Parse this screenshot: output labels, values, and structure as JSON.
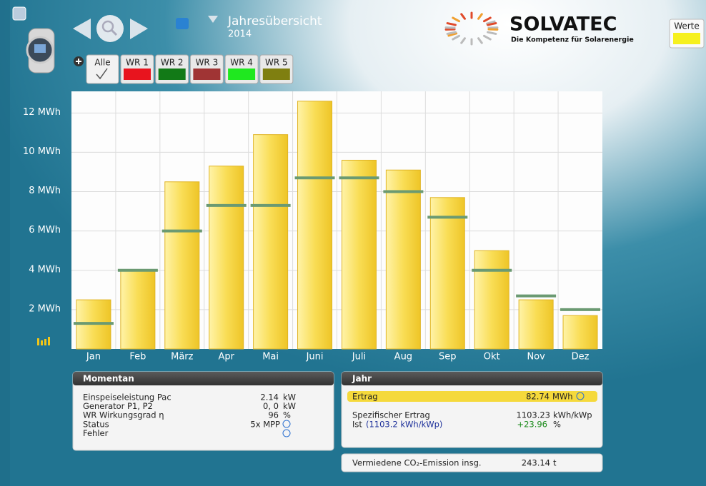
{
  "header": {
    "title": "Jahresübersicht",
    "year": "2014",
    "brand": "SOLVATEC",
    "slogan": "Die Kompetenz für Solarenergie",
    "values_button": "Werte"
  },
  "tabs": [
    {
      "label": "Alle"
    },
    {
      "label": "WR 1",
      "color": "#e8141e"
    },
    {
      "label": "WR 2",
      "color": "#127a17"
    },
    {
      "label": "WR 3",
      "color": "#a03434"
    },
    {
      "label": "WR 4",
      "color": "#1fe81f"
    },
    {
      "label": "WR 5",
      "color": "#7f7f10"
    }
  ],
  "chart_data": {
    "type": "bar",
    "categories": [
      "Jan",
      "Feb",
      "März",
      "Apr",
      "Mai",
      "Juni",
      "Juli",
      "Aug",
      "Sep",
      "Okt",
      "Nov",
      "Dez"
    ],
    "series": [
      {
        "color": "#f6d84c",
        "values": [
          2.5,
          4.0,
          8.5,
          9.3,
          10.9,
          12.6,
          9.6,
          9.1,
          7.7,
          5.0,
          2.5,
          1.7
        ]
      },
      {
        "color": "#6b9a72",
        "values": [
          1.3,
          4.0,
          6.0,
          7.3,
          7.3,
          8.7,
          8.7,
          8.0,
          6.7,
          4.0,
          2.7,
          2.0
        ]
      }
    ],
    "ylim": [
      0,
      13.1
    ],
    "yticks": [
      {
        "value": 2,
        "label": "2 MWh"
      },
      {
        "value": 4,
        "label": "4 MWh"
      },
      {
        "value": 6,
        "label": "6 MWh"
      },
      {
        "value": 8,
        "label": "8 MWh"
      },
      {
        "value": 10,
        "label": "10 MWh"
      },
      {
        "value": 12,
        "label": "12 MWh"
      }
    ],
    "grid": true
  },
  "momentan": {
    "title": "Momentan",
    "rows": [
      {
        "label": "Einspeiseleistung Pac",
        "value": "2.14",
        "unit": "kW"
      },
      {
        "label": "Generator P1, P2",
        "value": "0, 0",
        "unit": "kW"
      },
      {
        "label": "WR Wirkungsgrad η",
        "value": "96",
        "unit": "%"
      },
      {
        "label": "Status",
        "value": "5x MPP"
      },
      {
        "label": "Fehler"
      }
    ]
  },
  "jahr": {
    "title": "Jahr",
    "ertrag": {
      "label": "Ertrag",
      "value": "82.74",
      "unit": "MWh"
    },
    "specific": {
      "label": "Spezifischer Ertrag",
      "value": "1103.23",
      "unit": "kWh/kWp"
    },
    "ist": {
      "label": "Ist",
      "reference": "(1103.2 kWh/kWp)",
      "deviation": "+23.96",
      "unit": "%"
    }
  },
  "co2": {
    "label": "Vermiedene CO₂-Emission insg.",
    "value": "243.14",
    "unit": "t"
  }
}
